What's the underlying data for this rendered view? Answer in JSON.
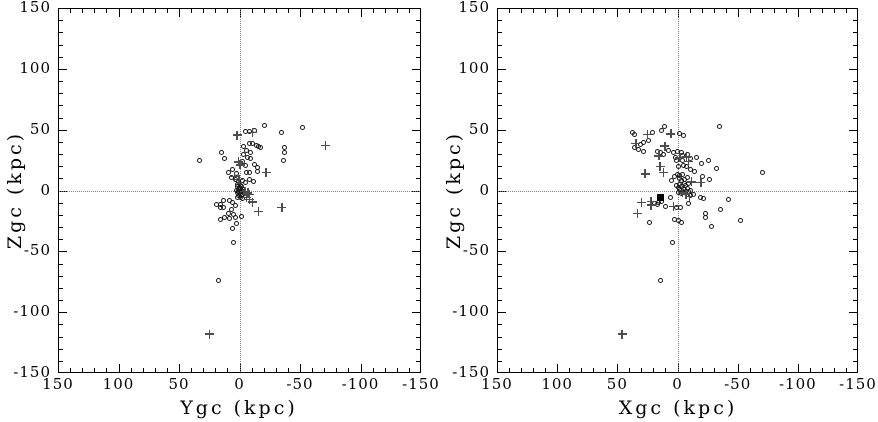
{
  "page": {
    "background": "#ffffff"
  },
  "colors": {
    "frame": "#000000",
    "text": "#000000",
    "marker_circle": "#1a1a1a",
    "marker_plus": "#4d4d4d",
    "marker_square": "#000000",
    "zero_line": "#808080"
  },
  "chart_data": [
    {
      "type": "scatter",
      "panel": "left",
      "title": "",
      "xlabel": "Ygc (kpc)",
      "ylabel": "Zgc (kpc)",
      "xlim": [
        150,
        -150
      ],
      "ylim": [
        -150,
        150
      ],
      "xticks": [
        150,
        100,
        50,
        0,
        -50,
        -100,
        -150
      ],
      "yticks": [
        150,
        100,
        50,
        0,
        -50,
        -100,
        -150
      ],
      "minor_tick_step": 10,
      "grid": "off",
      "zero_lines": "dotted-crosshair-at-0-0",
      "legend": "none",
      "series": [
        {
          "name": "open-circles",
          "marker": "open-circle",
          "points": [
            [
              33,
              25
            ],
            [
              14.5,
              31
            ],
            [
              12,
              26.5
            ],
            [
              -21,
              53.5
            ],
            [
              -52,
              52
            ],
            [
              -35,
              48
            ],
            [
              -5,
              48.5
            ],
            [
              -8.5,
              48.5
            ],
            [
              -12.5,
              49.5
            ],
            [
              -37,
              35
            ],
            [
              -37,
              31.5
            ],
            [
              -36,
              24.5
            ],
            [
              -15.5,
              36
            ],
            [
              -17.5,
              35
            ],
            [
              -14.5,
              16
            ],
            [
              -8,
              38.5
            ],
            [
              -11,
              38.5
            ],
            [
              -14,
              37
            ],
            [
              -3.5,
              36
            ],
            [
              -5.5,
              33
            ],
            [
              -9,
              31.5
            ],
            [
              -3,
              30
            ],
            [
              -6.5,
              27
            ],
            [
              -9.5,
              26
            ],
            [
              -2.5,
              23.5
            ],
            [
              -5,
              20.5
            ],
            [
              -12,
              21.5
            ],
            [
              -15,
              19
            ],
            [
              6,
              17
            ],
            [
              9.5,
              15
            ],
            [
              2.5,
              14
            ],
            [
              -5.5,
              14.5
            ],
            [
              -8,
              15
            ],
            [
              6.5,
              10.5
            ],
            [
              3.5,
              9
            ],
            [
              0.5,
              7
            ],
            [
              -2.5,
              8
            ],
            [
              -5,
              6.5
            ],
            [
              -8.5,
              9
            ],
            [
              -11.5,
              7
            ],
            [
              1.5,
              5
            ],
            [
              -0.5,
              4.5
            ],
            [
              2,
              3
            ],
            [
              0,
              2.5
            ],
            [
              -2,
              3
            ],
            [
              1,
              1
            ],
            [
              -1,
              1.5
            ],
            [
              -3,
              1
            ],
            [
              2.5,
              0
            ],
            [
              0.5,
              -0.5
            ],
            [
              -1.5,
              -1
            ],
            [
              -3.5,
              -0.5
            ],
            [
              1.5,
              -2
            ],
            [
              -0.5,
              -2.5
            ],
            [
              -2.5,
              -3
            ],
            [
              0.5,
              -4
            ],
            [
              -1.5,
              -4.5
            ],
            [
              2,
              -5.5
            ],
            [
              -0.5,
              -6
            ],
            [
              -2.5,
              -6.5
            ],
            [
              13,
              -8
            ],
            [
              19,
              -11.5
            ],
            [
              16,
              -11.5
            ],
            [
              16,
              -14
            ],
            [
              13.5,
              -14
            ],
            [
              8,
              -8
            ],
            [
              6,
              -10
            ],
            [
              3,
              -12.5
            ],
            [
              6.5,
              -16
            ],
            [
              9,
              -19
            ],
            [
              5,
              -20
            ],
            [
              12,
              -22.5
            ],
            [
              15.5,
              -23.5
            ],
            [
              8,
              -23
            ],
            [
              3,
              -22.5
            ],
            [
              -1.5,
              -21.5
            ],
            [
              2.5,
              -27
            ],
            [
              6,
              -31.5
            ],
            [
              5,
              -43
            ],
            [
              17,
              -74
            ]
          ]
        },
        {
          "name": "plus-markers",
          "marker": "plus",
          "points": [
            [
              2,
              45.5
            ],
            [
              -10.5,
              47.5
            ],
            [
              1,
              23.5
            ],
            [
              -0.5,
              21
            ],
            [
              -22,
              15
            ],
            [
              -71,
              37
            ],
            [
              4,
              11.5
            ],
            [
              0.5,
              9
            ],
            [
              -4.5,
              -1
            ],
            [
              -7,
              -2
            ],
            [
              -8.5,
              -3.5
            ],
            [
              -6,
              -6
            ],
            [
              -8.5,
              -7.5
            ],
            [
              -11,
              -9.5
            ],
            [
              -15.5,
              -17.5
            ],
            [
              -35,
              -14
            ],
            [
              25,
              -118
            ]
          ]
        }
      ]
    },
    {
      "type": "scatter",
      "panel": "right",
      "title": "",
      "xlabel": "Xgc (kpc)",
      "ylabel": "Zgc (kpc)",
      "xlim": [
        150,
        -150
      ],
      "ylim": [
        -150,
        150
      ],
      "xticks": [
        150,
        100,
        50,
        0,
        -50,
        -100,
        -150
      ],
      "yticks": [
        150,
        100,
        50,
        0,
        -50,
        -100,
        -150
      ],
      "minor_tick_step": 10,
      "grid": "off",
      "zero_lines": "dotted-crosshair-at-0-0",
      "legend": "none",
      "series": [
        {
          "name": "open-circles",
          "marker": "open-circle",
          "points": [
            [
              37,
              48
            ],
            [
              36,
              46
            ],
            [
              20.5,
              47.5
            ],
            [
              13,
              49
            ],
            [
              11,
              52.5
            ],
            [
              -2,
              46.5
            ],
            [
              -5,
              45
            ],
            [
              -35,
              53
            ],
            [
              31,
              37.5
            ],
            [
              28,
              39.5
            ],
            [
              24.5,
              41.5
            ],
            [
              36,
              35.5
            ],
            [
              32.5,
              33.5
            ],
            [
              28.5,
              32
            ],
            [
              16.5,
              32
            ],
            [
              14,
              31.5
            ],
            [
              11.8,
              29.5
            ],
            [
              7.5,
              33
            ],
            [
              3.5,
              31
            ],
            [
              -0.2,
              31.7
            ],
            [
              -3.5,
              31
            ],
            [
              -4.5,
              29
            ],
            [
              -8,
              30
            ],
            [
              1.5,
              27.5
            ],
            [
              -11,
              26
            ],
            [
              -16,
              27.5
            ],
            [
              -20,
              22
            ],
            [
              -25.5,
              24.5
            ],
            [
              -32,
              17.7
            ],
            [
              -71,
              15
            ],
            [
              -0.7,
              19.4
            ],
            [
              -4.8,
              20.7
            ],
            [
              -7.6,
              19.4
            ],
            [
              -10.4,
              17.4
            ],
            [
              -14.5,
              15.8
            ],
            [
              1.2,
              25
            ],
            [
              -4.3,
              24.5
            ],
            [
              -20.5,
              11.5
            ],
            [
              -27,
              8.8
            ],
            [
              5.4,
              8.4
            ],
            [
              2.1,
              11.2
            ],
            [
              0,
              13
            ],
            [
              -2,
              12
            ],
            [
              -4,
              13
            ],
            [
              -1.5,
              9.5
            ],
            [
              -3.5,
              8
            ],
            [
              -6,
              9
            ],
            [
              -8,
              10.5
            ],
            [
              -5.5,
              6
            ],
            [
              -2,
              5
            ],
            [
              0.5,
              4
            ],
            [
              -1,
              2.5
            ],
            [
              -3,
              3
            ],
            [
              -5,
              2
            ],
            [
              -7,
              4
            ],
            [
              -9,
              5.5
            ],
            [
              -2,
              0.5
            ],
            [
              -4,
              -0.5
            ],
            [
              -6,
              0.5
            ],
            [
              -8,
              1.5
            ],
            [
              -1,
              -2
            ],
            [
              -3.5,
              -2.5
            ],
            [
              -6.5,
              -2
            ],
            [
              -9,
              -1
            ],
            [
              -11,
              0
            ],
            [
              -10.4,
              -4.1
            ],
            [
              -13.7,
              -3.3
            ],
            [
              6.2,
              -5.5
            ],
            [
              -18.7,
              -5.5
            ],
            [
              -21.5,
              -6.8
            ],
            [
              16,
              -9.5
            ],
            [
              13,
              -9
            ],
            [
              9.8,
              -12.8
            ],
            [
              19.3,
              -10.6
            ],
            [
              16.5,
              -11.5
            ],
            [
              1.2,
              -13.7
            ],
            [
              -2.7,
              -14.2
            ],
            [
              -9,
              -10.4
            ],
            [
              -23.5,
              -19
            ],
            [
              -23.5,
              -22.5
            ],
            [
              -36,
              -16
            ],
            [
              -42,
              -7
            ],
            [
              -52,
              -25
            ],
            [
              22.9,
              -26
            ],
            [
              2.1,
              -24
            ],
            [
              -0.7,
              -25
            ],
            [
              -3.5,
              -26
            ],
            [
              -28.5,
              -29.5
            ],
            [
              4,
              -43
            ],
            [
              14,
              -74
            ]
          ]
        },
        {
          "name": "plus-markers",
          "marker": "plus",
          "points": [
            [
              25,
              46
            ],
            [
              5.5,
              46.5
            ],
            [
              34.5,
              38.5
            ],
            [
              15.5,
              28.5
            ],
            [
              10.5,
              36.5
            ],
            [
              14.5,
              19.5
            ],
            [
              27,
              13.7
            ],
            [
              11.8,
              15
            ],
            [
              -7.6,
              27.6
            ],
            [
              -9,
              24
            ],
            [
              -2,
              26.8
            ],
            [
              -11.8,
              7.1
            ],
            [
              -19.5,
              6.8
            ],
            [
              33,
              -19
            ],
            [
              22,
              -12
            ],
            [
              30,
              -10
            ],
            [
              22,
              -9
            ],
            [
              3.5,
              -13
            ],
            [
              -4,
              -1.5
            ],
            [
              -7,
              -3
            ],
            [
              -10,
              -5
            ],
            [
              46,
              -118
            ]
          ]
        },
        {
          "name": "filled-square",
          "marker": "filled-square",
          "points": [
            [
              14,
              -6
            ]
          ]
        }
      ]
    }
  ]
}
